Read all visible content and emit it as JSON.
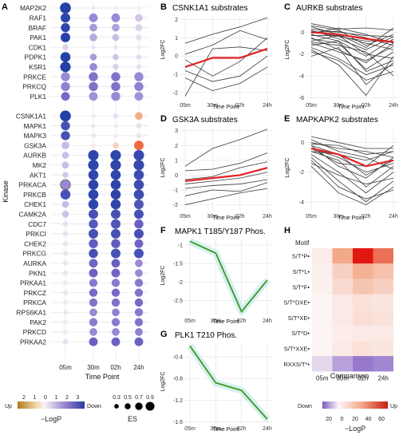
{
  "panels": {
    "A": {
      "letter": "A",
      "ylabel": "Kinase",
      "xlabel": "Time Point",
      "timepoints": [
        "05m",
        "30m",
        "02h",
        "24h"
      ],
      "legend_logp_title": "−LogP",
      "legend_logp_up": "Up",
      "legend_logp_down": "Down",
      "legend_logp_ticks": [
        "2",
        "1",
        "0",
        "1",
        "2",
        "3"
      ],
      "legend_es_title": "ES",
      "legend_es_ticks": [
        "0.3",
        "0.5",
        "0.7",
        "0.9"
      ]
    },
    "B": {
      "letter": "B",
      "title": "CSNK1A1 substrates",
      "ylabel": "Log2FC",
      "xlabel": "Time Point"
    },
    "C": {
      "letter": "C",
      "title": "AURKB substrates",
      "ylabel": "Log2FC",
      "xlabel": "Time Point"
    },
    "D": {
      "letter": "D",
      "title": "GSK3A substrates",
      "ylabel": "Log2FC",
      "xlabel": "Time Point"
    },
    "E": {
      "letter": "E",
      "title": "MAPKAPK2 substrates",
      "ylabel": "Log2FC",
      "xlabel": "Time Point"
    },
    "F": {
      "letter": "F",
      "title": "MAPK1 T185/Y187 Phos.",
      "ylabel": "Log2FC",
      "xlabel": "Time Point"
    },
    "G": {
      "letter": "G",
      "title": "PLK1 T210 Phos.",
      "ylabel": "Log2FC",
      "xlabel": "Time Point"
    },
    "H": {
      "letter": "H",
      "header": "Motif",
      "xlabel": "Comparison",
      "legend_title": "−LogP",
      "legend_down": "Down",
      "legend_up": "Up",
      "legend_ticks": [
        "20",
        "0",
        "20",
        "40",
        "60"
      ]
    }
  },
  "colors": {
    "up": "#c0392b",
    "down": "#2b3aa0",
    "red_line": "#e02020",
    "green_line": "#3a9a20"
  },
  "chart_data": [
    {
      "id": "A",
      "type": "dotplot",
      "x": [
        "05m",
        "30m",
        "02h",
        "24h"
      ],
      "kinases": [
        "MAP2K2",
        "RAF1",
        "BRAF",
        "PAK1",
        "CDK1",
        "PDPK1",
        "KSR1",
        "PRKCE",
        "PRKCQ",
        "PLK1",
        "",
        "CSNK1A1",
        "MAPK1",
        "MAPK3",
        "GSK3A",
        "AURKB",
        "MK2",
        "AKT1",
        "PRKACA",
        "PRKCB",
        "CHEK1",
        "CAMK2A",
        "CDC7",
        "PRKCI",
        "CHEK2",
        "PRKCG",
        "AURKA",
        "PKN1",
        "PRKAA1",
        "PRKCZ",
        "PRKCA",
        "RPS6KA1",
        "PAK2",
        "PRKCD",
        "PRKAA2"
      ],
      "signed_logp": [
        [
          3.0,
          0.2,
          0.1,
          0.1
        ],
        [
          2.9,
          1.6,
          1.6,
          0.8
        ],
        [
          2.9,
          1.4,
          1.3,
          0.6
        ],
        [
          3.0,
          1.2,
          1.0,
          0.4
        ],
        [
          0.6,
          0.3,
          0.3,
          0.2
        ],
        [
          3.0,
          1.4,
          0.9,
          0.5
        ],
        [
          3.0,
          1.6,
          0.6,
          0.4
        ],
        [
          1.6,
          1.9,
          1.9,
          1.6
        ],
        [
          1.7,
          1.9,
          1.9,
          1.7
        ],
        [
          2.0,
          1.5,
          1.6,
          1.5
        ],
        [
          0,
          0,
          0,
          0
        ],
        [
          3.0,
          0.2,
          0.4,
          -1.3
        ],
        [
          2.6,
          0.3,
          0.2,
          0.4
        ],
        [
          2.6,
          0.3,
          0.2,
          0.3
        ],
        [
          1.0,
          -0.2,
          -0.8,
          -2.0
        ],
        [
          1.0,
          2.9,
          2.9,
          2.8
        ],
        [
          1.0,
          2.9,
          2.9,
          2.8
        ],
        [
          0.8,
          2.9,
          2.9,
          2.7
        ],
        [
          1.6,
          2.9,
          2.9,
          2.7
        ],
        [
          2.6,
          2.9,
          2.9,
          2.7
        ],
        [
          1.0,
          2.9,
          2.9,
          2.5
        ],
        [
          0.9,
          2.6,
          2.6,
          2.6
        ],
        [
          0.4,
          2.4,
          2.5,
          2.2
        ],
        [
          0.4,
          2.6,
          2.6,
          2.6
        ],
        [
          0.3,
          2.3,
          2.3,
          2.1
        ],
        [
          0.3,
          2.6,
          2.6,
          2.6
        ],
        [
          0.3,
          2.1,
          2.2,
          1.6
        ],
        [
          0.3,
          2.2,
          2.1,
          1.6
        ],
        [
          0.2,
          1.8,
          1.8,
          1.8
        ],
        [
          0.3,
          2.0,
          2.0,
          1.9
        ],
        [
          0.2,
          1.9,
          1.9,
          2.0
        ],
        [
          0.3,
          1.6,
          1.7,
          1.8
        ],
        [
          0.2,
          1.8,
          1.8,
          1.9
        ],
        [
          0.2,
          1.6,
          1.6,
          1.7
        ],
        [
          0.4,
          2.2,
          2.2,
          2.2
        ]
      ],
      "es": [
        [
          0.95,
          0.2,
          0.2,
          0.2
        ],
        [
          0.8,
          0.7,
          0.7,
          0.6
        ],
        [
          0.75,
          0.6,
          0.6,
          0.5
        ],
        [
          0.8,
          0.6,
          0.5,
          0.4
        ],
        [
          0.4,
          0.2,
          0.2,
          0.2
        ],
        [
          0.85,
          0.5,
          0.4,
          0.3
        ],
        [
          0.9,
          0.6,
          0.4,
          0.3
        ],
        [
          0.75,
          0.75,
          0.75,
          0.75
        ],
        [
          0.75,
          0.75,
          0.75,
          0.75
        ],
        [
          0.7,
          0.7,
          0.75,
          0.7
        ],
        [
          0,
          0,
          0,
          0
        ],
        [
          0.95,
          0.2,
          0.3,
          0.6
        ],
        [
          0.75,
          0.2,
          0.2,
          0.3
        ],
        [
          0.75,
          0.2,
          0.2,
          0.3
        ],
        [
          0.6,
          0.2,
          0.4,
          0.8
        ],
        [
          0.5,
          0.9,
          0.9,
          0.9
        ],
        [
          0.5,
          0.9,
          0.9,
          0.9
        ],
        [
          0.4,
          0.85,
          0.85,
          0.85
        ],
        [
          0.85,
          0.85,
          0.85,
          0.85
        ],
        [
          0.85,
          0.85,
          0.85,
          0.85
        ],
        [
          0.5,
          0.85,
          0.85,
          0.8
        ],
        [
          0.5,
          0.8,
          0.8,
          0.8
        ],
        [
          0.3,
          0.75,
          0.8,
          0.75
        ],
        [
          0.3,
          0.8,
          0.8,
          0.8
        ],
        [
          0.3,
          0.75,
          0.75,
          0.7
        ],
        [
          0.3,
          0.75,
          0.8,
          0.8
        ],
        [
          0.3,
          0.7,
          0.7,
          0.6
        ],
        [
          0.3,
          0.7,
          0.7,
          0.6
        ],
        [
          0.3,
          0.65,
          0.65,
          0.65
        ],
        [
          0.3,
          0.65,
          0.65,
          0.65
        ],
        [
          0.3,
          0.65,
          0.65,
          0.65
        ],
        [
          0.3,
          0.6,
          0.6,
          0.65
        ],
        [
          0.3,
          0.65,
          0.65,
          0.65
        ],
        [
          0.3,
          0.6,
          0.6,
          0.6
        ],
        [
          0.3,
          0.7,
          0.7,
          0.7
        ]
      ]
    },
    {
      "id": "B",
      "type": "line",
      "x": [
        "05m",
        "30m",
        "02h",
        "24h"
      ],
      "ylim": [
        -2.4,
        2.2
      ],
      "yticks": [
        -2,
        -1,
        0,
        1,
        2
      ],
      "series": [
        [
          0.7,
          1.2,
          1.6,
          2.1
        ],
        [
          0.1,
          0.6,
          1.4,
          0.9
        ],
        [
          -0.2,
          -1.1,
          -0.3,
          1.0
        ],
        [
          -0.8,
          -1.4,
          -1.1,
          0.0
        ],
        [
          -1.2,
          -1.9,
          -1.5,
          -0.6
        ],
        [
          -2.2,
          0.4,
          0.5,
          0.3
        ]
      ],
      "mean": [
        -0.6,
        -0.1,
        -0.1,
        0.4
      ]
    },
    {
      "id": "C",
      "type": "line",
      "x": [
        "05m",
        "30m",
        "02h",
        "24h"
      ],
      "ylim": [
        -6.2,
        1.5
      ],
      "yticks": [
        -6,
        -4,
        -2,
        0
      ],
      "series": [
        [
          0.8,
          0.3,
          0.4,
          0.2
        ],
        [
          0.5,
          -0.2,
          -1.4,
          0.4
        ],
        [
          0.2,
          -0.6,
          -1.6,
          -0.4
        ],
        [
          0.1,
          -0.4,
          -0.8,
          -0.8
        ],
        [
          0.0,
          0.1,
          -0.5,
          -1.2
        ],
        [
          -0.2,
          -0.8,
          -2.2,
          -0.6
        ],
        [
          -0.3,
          -0.3,
          -1.0,
          -1.6
        ],
        [
          -0.5,
          -1.6,
          -2.8,
          -1.0
        ],
        [
          -0.6,
          -1.0,
          -3.4,
          -1.8
        ],
        [
          -0.8,
          -0.3,
          -2.0,
          -2.4
        ],
        [
          -1.0,
          -1.8,
          -2.6,
          -1.3
        ],
        [
          -1.2,
          -0.8,
          -3.6,
          -2.6
        ],
        [
          -1.4,
          -2.4,
          -3.9,
          -3.0
        ],
        [
          -1.6,
          -3.0,
          -5.8,
          -2.2
        ],
        [
          -1.8,
          -2.6,
          -4.4,
          -3.6
        ],
        [
          -2.2,
          -1.4,
          -4.8,
          -2.8
        ],
        [
          0.3,
          0.0,
          -0.3,
          -0.4
        ],
        [
          -0.1,
          0.4,
          -0.2,
          -1.0
        ],
        [
          0.6,
          0.2,
          -1.2,
          -0.2
        ],
        [
          -0.9,
          -1.2,
          -1.8,
          -4.0
        ]
      ],
      "mean": [
        0.0,
        -0.2,
        -0.6,
        -0.9
      ]
    },
    {
      "id": "D",
      "type": "line",
      "x": [
        "05m",
        "30m",
        "02h",
        "24h"
      ],
      "ylim": [
        -2.4,
        3.2
      ],
      "yticks": [
        -2,
        -1,
        0,
        1,
        2,
        3
      ],
      "series": [
        [
          0.6,
          1.8,
          2.4,
          3.1
        ],
        [
          0.3,
          0.4,
          0.8,
          1.5
        ],
        [
          -0.3,
          -0.1,
          0.5,
          0.9
        ],
        [
          -0.6,
          -0.4,
          -0.2,
          0.2
        ],
        [
          -0.9,
          -0.7,
          -0.6,
          -0.3
        ],
        [
          -1.4,
          -1.0,
          -1.1,
          -0.5
        ],
        [
          -2.0,
          -1.6,
          -1.2,
          -0.9
        ]
      ],
      "mean": [
        -0.4,
        -0.2,
        0.0,
        0.5
      ]
    },
    {
      "id": "E",
      "type": "line",
      "x": [
        "05m",
        "30m",
        "02h",
        "24h"
      ],
      "ylim": [
        -4.6,
        1.0
      ],
      "yticks": [
        -4,
        -2,
        0
      ],
      "series": [
        [
          0.4,
          0.0,
          -0.4,
          -0.4
        ],
        [
          0.0,
          -0.4,
          -0.6,
          -1.0
        ],
        [
          -0.2,
          -0.8,
          -1.2,
          -0.6
        ],
        [
          -0.4,
          -1.0,
          -2.0,
          -1.4
        ],
        [
          -0.2,
          -1.6,
          -2.4,
          -1.0
        ],
        [
          -0.6,
          -1.2,
          -3.0,
          -1.6
        ],
        [
          -0.8,
          -2.0,
          -3.4,
          -2.0
        ],
        [
          -1.0,
          -2.6,
          -4.0,
          -2.6
        ],
        [
          -1.2,
          -3.0,
          -3.8,
          -3.2
        ],
        [
          -1.4,
          -2.2,
          -2.8,
          -2.4
        ],
        [
          -0.4,
          -1.4,
          -1.6,
          -0.2
        ],
        [
          0.2,
          -0.6,
          -1.0,
          -1.8
        ],
        [
          -1.6,
          -3.4,
          -4.2,
          -3.0
        ],
        [
          -0.6,
          -0.8,
          -2.2,
          -1.2
        ],
        [
          -0.1,
          -0.2,
          -0.8,
          -0.6
        ]
      ],
      "mean": [
        -0.4,
        -0.8,
        -1.6,
        -1.2
      ]
    },
    {
      "id": "F",
      "type": "line",
      "x": [
        "05m",
        "30m",
        "02h",
        "24h"
      ],
      "ylim": [
        -2.9,
        -0.85
      ],
      "yticks": [
        -1.0,
        -1.5,
        -2.0,
        -2.5
      ],
      "values": [
        -0.9,
        -1.22,
        -2.8,
        -1.95
      ]
    },
    {
      "id": "G",
      "type": "line",
      "x": [
        "05m",
        "30m",
        "02h",
        "24h"
      ],
      "ylim": [
        -1.62,
        -0.15
      ],
      "yticks": [
        -0.4,
        -0.8,
        -1.2,
        -1.6
      ],
      "values": [
        -0.2,
        -0.88,
        -1.02,
        -1.55
      ]
    },
    {
      "id": "H",
      "type": "heatmap",
      "x": [
        "05m",
        "30m",
        "02h",
        "24h"
      ],
      "rows": [
        "S/T*P•",
        "S/T*L•",
        "S/T*F•",
        "S/T*DXE•",
        "S/T*XE•",
        "S/T*D•",
        "S/T*XXE•",
        "RXXS/T*•"
      ],
      "values": [
        [
          2,
          25,
          62,
          40
        ],
        [
          1,
          10,
          22,
          16
        ],
        [
          1,
          7,
          14,
          10
        ],
        [
          0,
          3,
          5,
          4
        ],
        [
          0,
          3,
          6,
          5
        ],
        [
          0,
          2,
          3,
          3
        ],
        [
          0,
          3,
          5,
          4
        ],
        [
          -4,
          -12,
          -18,
          -16
        ]
      ]
    }
  ]
}
